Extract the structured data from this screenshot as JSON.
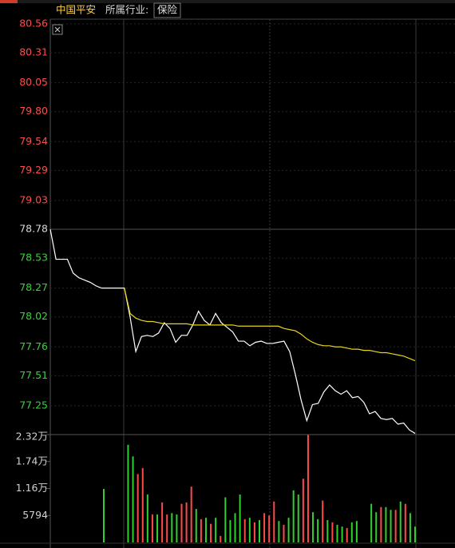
{
  "header": {
    "stock": "中国平安",
    "industry_label": "所属行业:",
    "industry": "保险"
  },
  "chart_data": [
    {
      "type": "line",
      "ylim": [
        77.0,
        80.56
      ],
      "yticks": [
        80.56,
        80.31,
        80.05,
        {
          "value": 79.8,
          "label": "79.80"
        },
        79.54,
        79.29,
        79.03,
        78.78,
        78.53,
        78.27,
        78.02,
        77.76,
        77.51,
        77.25
      ],
      "up_color": "#ff4a4a",
      "down_color": "#33d633",
      "flat_color": "#d8d8d8",
      "grid": true,
      "series": [
        {
          "color": "#ffffff",
          "values": [
            78.78,
            78.52,
            78.52,
            78.52,
            78.4,
            78.36,
            78.34,
            78.32,
            78.29,
            78.27,
            78.27,
            78.27,
            78.27,
            78.27,
            78.02,
            77.72,
            77.85,
            77.86,
            77.85,
            77.88,
            77.97,
            77.92,
            77.8,
            77.86,
            77.86,
            77.95,
            78.07,
            77.99,
            77.95,
            78.05,
            77.97,
            77.93,
            77.89,
            77.81,
            77.81,
            77.77,
            77.8,
            77.81,
            77.79,
            77.79,
            77.8,
            77.81,
            77.72,
            77.52,
            77.3,
            77.12,
            77.26,
            77.27,
            77.37,
            77.43,
            77.38,
            77.35,
            77.38,
            77.32,
            77.33,
            77.28,
            77.18,
            77.2,
            77.14,
            77.13,
            77.14,
            77.09,
            77.1,
            77.04,
            77.01
          ]
        },
        {
          "color": "#e6d41e",
          "values": [
            null,
            null,
            null,
            null,
            null,
            null,
            null,
            null,
            null,
            null,
            null,
            null,
            null,
            78.27,
            78.05,
            78.01,
            77.99,
            77.98,
            77.98,
            77.97,
            77.96,
            77.96,
            77.96,
            77.96,
            77.96,
            77.95,
            77.95,
            77.95,
            77.95,
            77.95,
            77.95,
            77.95,
            77.95,
            77.94,
            77.94,
            77.94,
            77.94,
            77.94,
            77.94,
            77.94,
            77.94,
            77.92,
            77.91,
            77.9,
            77.87,
            77.83,
            77.8,
            77.78,
            77.77,
            77.77,
            77.76,
            77.76,
            77.75,
            77.74,
            77.74,
            77.73,
            77.73,
            77.72,
            77.71,
            77.71,
            77.7,
            77.69,
            77.68,
            77.66,
            77.64
          ]
        }
      ]
    },
    {
      "type": "bar",
      "ylim": [
        0,
        23200
      ],
      "yticks": [
        {
          "value": 23200,
          "label": "2.32万"
        },
        {
          "value": 17400,
          "label": "1.74万"
        },
        {
          "value": 11600,
          "label": "1.16万"
        },
        5794
      ],
      "values": [
        11500,
        null,
        null,
        null,
        null,
        21000,
        18500,
        14700,
        16000,
        10300,
        6000,
        6000,
        8600,
        6000,
        6300,
        6000,
        8300,
        8600,
        12000,
        7200,
        5000,
        5300,
        4000,
        5300,
        1400,
        9700,
        4800,
        6300,
        10300,
        5000,
        5300,
        4300,
        4800,
        6300,
        5800,
        8800,
        4600,
        3800,
        5300,
        11200,
        10300,
        13700,
        23100,
        6500,
        5000,
        9000,
        4800,
        4300,
        3800,
        3400,
        3100,
        4300,
        4600,
        null,
        null,
        8300,
        6500,
        7600,
        7600,
        7000,
        7000,
        8800,
        8300,
        6300,
        3400
      ],
      "colors": [
        "#2fd02f",
        null,
        null,
        null,
        null,
        "#2fd02f",
        "#2fd02f",
        "#ff4a4a",
        "#ff4a4a",
        "#2fd02f",
        "#ff4a4a",
        "#2fd02f",
        "#ff4a4a",
        "#ff4a4a",
        "#2fd02f",
        "#2fd02f",
        "#ff4a4a",
        "#ff4a4a",
        "#ff4a4a",
        "#2fd02f",
        "#ff4a4a",
        "#2fd02f",
        "#ff4a4a",
        "#2fd02f",
        "#ff4a4a",
        "#2fd02f",
        "#2fd02f",
        "#2fd02f",
        "#2fd02f",
        "#ff4a4a",
        "#2fd02f",
        "#ff4a4a",
        "#2fd02f",
        "#ff4a4a",
        "#ff4a4a",
        "#ff4a4a",
        "#2fd02f",
        "#ff4a4a",
        "#2fd02f",
        "#2fd02f",
        "#2fd02f",
        "#ff4a4a",
        "#ff4a4a",
        "#2fd02f",
        "#2fd02f",
        "#ff4a4a",
        "#2fd02f",
        "#ff4a4a",
        "#2fd02f",
        "#2fd02f",
        "#ff4a4a",
        "#2fd02f",
        "#2fd02f",
        null,
        null,
        "#2fd02f",
        "#2fd02f",
        "#ff4a4a",
        "#2fd02f",
        "#2fd02f",
        "#ff4a4a",
        "#2fd02f",
        "#ff4a4a",
        "#2fd02f",
        "#2fd02f"
      ],
      "label_color": "#d0d0d0"
    }
  ]
}
